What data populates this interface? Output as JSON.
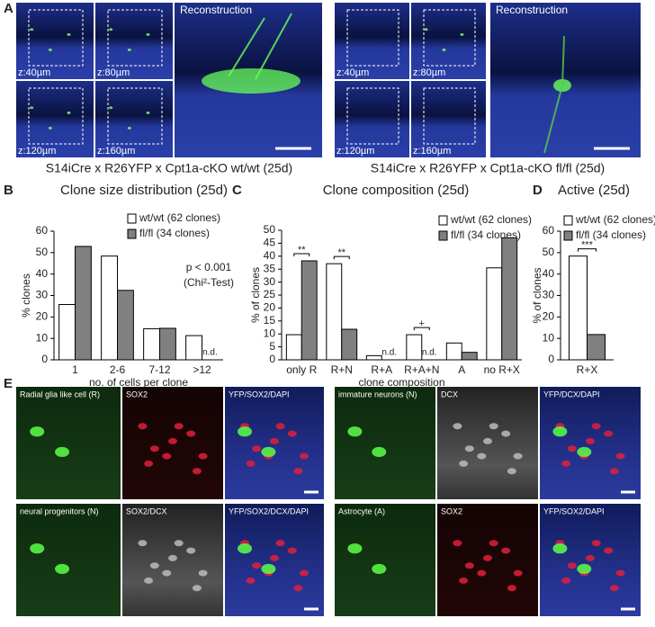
{
  "panel_labels": [
    "A",
    "B",
    "C",
    "D",
    "E"
  ],
  "panel_a": {
    "left": {
      "z_labels": [
        "z:40µm",
        "z:80µm",
        "z:120µm",
        "z:160µm"
      ],
      "reconstruction": "Reconstruction",
      "caption": "S14iCre x R26YFP x Cpt1a-cKO wt/wt (25d)"
    },
    "right": {
      "z_labels": [
        "z:40µm",
        "z:80µm",
        "z:120µm",
        "z:160µm"
      ],
      "reconstruction": "Reconstruction",
      "caption": "S14iCre x R26YFP x Cpt1a-cKO fl/fl (25d)"
    }
  },
  "chart_data": [
    {
      "type": "bar",
      "title": "Clone size distribution (25d)",
      "x_label": "no. of cells per clone",
      "y_label": "% clones",
      "categories": [
        "1",
        "2-6",
        "7-12",
        ">12"
      ],
      "series": [
        {
          "name": "wt/wt (62 clones)",
          "color": "#ffffff",
          "values": [
            25.8,
            48.4,
            14.5,
            11.3
          ]
        },
        {
          "name": "fl/fl (34 clones)",
          "color": "#808080",
          "values": [
            52.9,
            32.4,
            14.7,
            null
          ]
        }
      ],
      "ylim": [
        0,
        60
      ],
      "yticks": [
        0,
        10,
        20,
        30,
        40,
        50,
        60
      ],
      "annotations": [
        {
          "text": "n.d.",
          "category": ">12"
        }
      ],
      "notes": [
        "p < 0.001",
        "(Chi²-Test)"
      ]
    },
    {
      "type": "bar",
      "title": "Clone composition (25d)",
      "x_label": "clone composition",
      "y_label": "% of clones",
      "categories": [
        "only R",
        "R+N",
        "R+A",
        "R+A+N",
        "A",
        "no R+X"
      ],
      "series": [
        {
          "name": "wt/wt (62 clones)",
          "color": "#ffffff",
          "values": [
            9.7,
            37.1,
            1.6,
            9.7,
            6.5,
            35.5
          ]
        },
        {
          "name": "fl/fl (34 clones)",
          "color": "#808080",
          "values": [
            38.2,
            11.8,
            null,
            null,
            2.9,
            47.1
          ]
        }
      ],
      "ylim": [
        0,
        50
      ],
      "yticks": [
        0,
        5,
        10,
        15,
        20,
        25,
        30,
        35,
        40,
        45,
        50
      ],
      "annotations": [
        {
          "text": "**",
          "category": "only R"
        },
        {
          "text": "**",
          "category": "R+N"
        },
        {
          "text": "n.d.",
          "category": "R+A"
        },
        {
          "text": "+",
          "category": "R+A+N"
        },
        {
          "text": "n.d.",
          "category": "R+A+N"
        }
      ]
    },
    {
      "type": "bar",
      "title": "Active (25d)",
      "y_label": "% of clones",
      "categories": [
        "R+X"
      ],
      "series": [
        {
          "name": "wt/wt (62 clones)",
          "color": "#ffffff",
          "values": [
            48.4
          ]
        },
        {
          "name": "fl/fl (34 clones)",
          "color": "#808080",
          "values": [
            11.8
          ]
        }
      ],
      "ylim": [
        0,
        60
      ],
      "yticks": [
        0,
        10,
        20,
        30,
        40,
        50,
        60
      ],
      "annotations": [
        {
          "text": "***",
          "category": "R+X"
        }
      ]
    }
  ],
  "panel_e": {
    "images": [
      "Radial glia like cell (R)",
      "SOX2",
      "YFP/SOX2/DAPI",
      "immature neurons (N)",
      "DCX",
      "YFP/DCX/DAPI",
      "neural progenitors (N)",
      "SOX2/DCX",
      "YFP/SOX2/DCX/DAPI",
      "Astrocyte (A)",
      "SOX2",
      "YFP/SOX2/DAPI"
    ]
  }
}
